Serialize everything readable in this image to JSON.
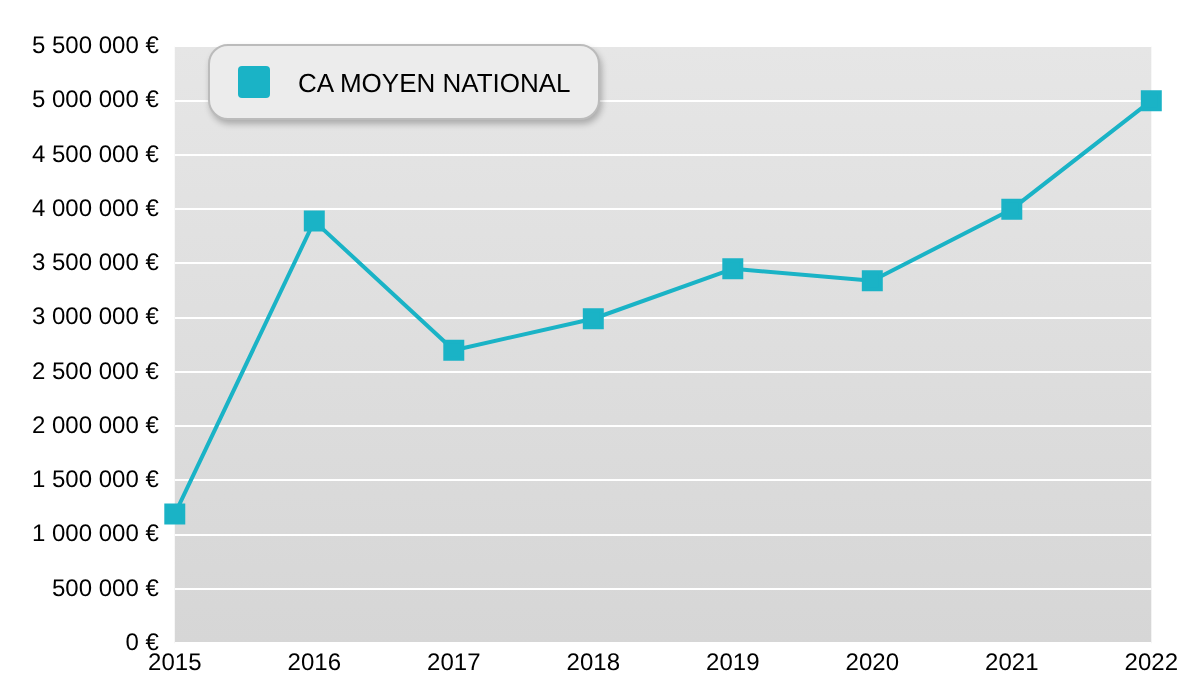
{
  "chart_data": {
    "type": "line",
    "categories": [
      "2015",
      "2016",
      "2017",
      "2018",
      "2019",
      "2020",
      "2021",
      "2022"
    ],
    "series": [
      {
        "name": "CA MOYEN NATIONAL",
        "color": "#1ab3c6",
        "values": [
          1190000,
          3890000,
          2700000,
          2990000,
          3450000,
          3340000,
          4000000,
          5000000
        ]
      }
    ],
    "ylim": [
      0,
      5500000
    ],
    "yticks": [
      {
        "value": 0,
        "label": "0 €"
      },
      {
        "value": 500000,
        "label": "500 000 €"
      },
      {
        "value": 1000000,
        "label": "1 000 000 €"
      },
      {
        "value": 1500000,
        "label": "1 500 000 €"
      },
      {
        "value": 2000000,
        "label": "2 000 000 €"
      },
      {
        "value": 2500000,
        "label": "2 500 000 €"
      },
      {
        "value": 3000000,
        "label": "3 000 000 €"
      },
      {
        "value": 3500000,
        "label": "3 500 000 €"
      },
      {
        "value": 4000000,
        "label": "4 000 000 €"
      },
      {
        "value": 4500000,
        "label": "4 500 000 €"
      },
      {
        "value": 5000000,
        "label": "5 000 000 €"
      },
      {
        "value": 5500000,
        "label": "5 500 000 €"
      }
    ],
    "grid": "y",
    "legend": "top left",
    "marker": "square",
    "line_style": "solid"
  }
}
